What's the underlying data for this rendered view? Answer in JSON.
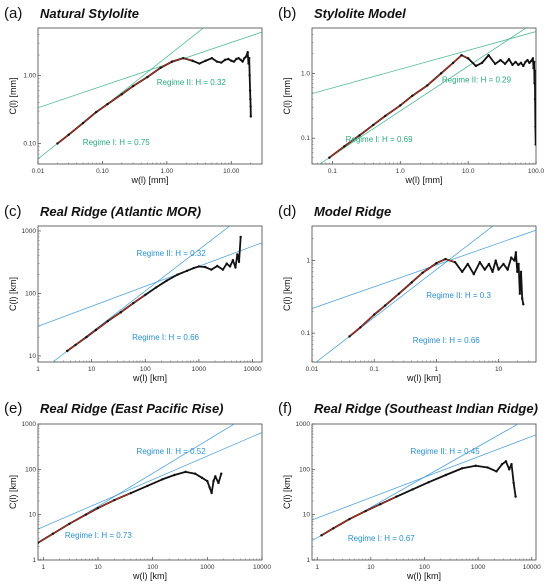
{
  "chart_data": [
    {
      "panel_label": "(a)",
      "title": "Natural Stylolite",
      "type": "line",
      "xlabel": "w(l)  [mm]",
      "ylabel": "C(l)  [mm]",
      "xlim": [
        0.01,
        30
      ],
      "ylim": [
        0.05,
        5
      ],
      "log": true,
      "xticks": [
        "0.01",
        "0.10",
        "1.00",
        "10.00"
      ],
      "yticks": [
        "0.10",
        "1.00"
      ],
      "fit_color": "#2aa87f",
      "regime1": {
        "label": "Regime I: H = 0.75",
        "H": 0.75,
        "x0": 0.02,
        "y0": 0.1
      },
      "regime2": {
        "label": "Regime II: H = 0.32",
        "H": 0.32,
        "x0": 1.9,
        "y0": 1.8
      },
      "x": [
        0.02,
        0.03,
        0.05,
        0.08,
        0.12,
        0.2,
        0.3,
        0.5,
        0.8,
        1.2,
        1.8,
        2.5,
        3.2,
        4,
        5,
        6,
        7,
        8,
        9,
        10,
        11,
        12,
        13,
        14,
        15,
        16,
        17,
        18,
        18.5,
        19,
        19.3,
        19.6,
        19.8,
        20,
        20.1
      ],
      "y": [
        0.1,
        0.135,
        0.2,
        0.29,
        0.38,
        0.53,
        0.7,
        0.95,
        1.3,
        1.6,
        1.8,
        1.65,
        1.5,
        1.65,
        1.8,
        1.6,
        1.55,
        1.7,
        1.75,
        1.65,
        1.6,
        1.75,
        1.8,
        1.7,
        1.6,
        1.8,
        1.9,
        2.2,
        1.5,
        1.8,
        1.0,
        0.6,
        0.45,
        0.35,
        0.25
      ]
    },
    {
      "panel_label": "(b)",
      "title": "Stylolite Model",
      "type": "line",
      "xlabel": "w(l)  [mm]",
      "ylabel": "C(l)  [mm]",
      "xlim": [
        0.05,
        100
      ],
      "ylim": [
        0.04,
        5
      ],
      "log": true,
      "xticks": [
        "0.1",
        "1.0",
        "10.0",
        "100.0"
      ],
      "yticks": [
        "0.1",
        "1.0"
      ],
      "fit_color": "#2aa87f",
      "regime1": {
        "label": "Regime I: H = 0.69",
        "H": 0.69,
        "x0": 0.09,
        "y0": 0.05
      },
      "regime2": {
        "label": "Regime II: H = 0.29",
        "H": 0.29,
        "x0": 6,
        "y0": 1.95
      },
      "x": [
        0.09,
        0.15,
        0.25,
        0.4,
        0.6,
        1,
        1.5,
        2.5,
        4,
        6,
        8,
        10,
        13,
        16,
        20,
        25,
        30,
        35,
        40,
        45,
        50,
        55,
        60,
        65,
        70,
        75,
        80,
        85,
        90,
        92,
        94,
        95,
        96,
        97,
        98,
        99
      ],
      "y": [
        0.05,
        0.075,
        0.11,
        0.16,
        0.22,
        0.32,
        0.45,
        0.65,
        1.0,
        1.45,
        1.9,
        1.7,
        1.3,
        1.45,
        1.9,
        1.4,
        1.6,
        1.4,
        1.65,
        1.35,
        1.5,
        1.35,
        1.45,
        1.3,
        1.5,
        1.6,
        1.45,
        1.55,
        1.7,
        1.2,
        1.5,
        0.7,
        1.1,
        0.4,
        0.15,
        0.08
      ]
    },
    {
      "panel_label": "(c)",
      "title": "Real Ridge (Atlantic MOR)",
      "type": "line",
      "xlabel": "w(l)  [km]",
      "ylabel": "C(l)  [km]",
      "xlim": [
        1,
        15000
      ],
      "ylim": [
        8,
        1200
      ],
      "log": true,
      "xticks": [
        "1",
        "10",
        "100",
        "1000",
        "10000"
      ],
      "yticks": [
        "10",
        "100",
        "1000"
      ],
      "fit_color": "#2a8fd0",
      "regime1": {
        "label": "Regime I: H = 0.66",
        "H": 0.66,
        "x0": 3.5,
        "y0": 12
      },
      "regime2": {
        "label": "Regime II: H = 0.32",
        "H": 0.32,
        "x0": 300,
        "y0": 185
      },
      "x": [
        3.5,
        5,
        8,
        12,
        20,
        35,
        60,
        100,
        160,
        250,
        400,
        600,
        800,
        1000,
        1300,
        1700,
        2200,
        2800,
        3300,
        3800,
        4300,
        4800,
        5200,
        5600,
        6000
      ],
      "y": [
        12,
        15,
        20,
        26,
        36,
        50,
        70,
        95,
        125,
        160,
        200,
        230,
        255,
        270,
        265,
        240,
        275,
        240,
        300,
        270,
        340,
        260,
        420,
        320,
        800
      ]
    },
    {
      "panel_label": "(d)",
      "title": "Model Ridge",
      "type": "line",
      "xlabel": "w(l)  [km]",
      "ylabel": "C(l)  [km]",
      "xlim": [
        0.01,
        40
      ],
      "ylim": [
        0.04,
        3
      ],
      "log": true,
      "xticks": [
        "0.01",
        "0.1",
        "1",
        "10"
      ],
      "yticks": [
        "0.1",
        "1"
      ],
      "fit_color": "#2a8fd0",
      "regime1": {
        "label": "Regime I: H = 0.66",
        "H": 0.66,
        "x0": 0.04,
        "y0": 0.09
      },
      "regime2": {
        "label": "Regime II: H = 0.3",
        "H": 0.3,
        "x0": 1.6,
        "y0": 1.0
      },
      "x": [
        0.04,
        0.06,
        0.1,
        0.15,
        0.25,
        0.4,
        0.6,
        1,
        1.4,
        2,
        2.6,
        3.2,
        4,
        5,
        6,
        7,
        8,
        9,
        10,
        12,
        14,
        16,
        18,
        19,
        20,
        21,
        22,
        23,
        24,
        25
      ],
      "y": [
        0.09,
        0.12,
        0.18,
        0.24,
        0.35,
        0.5,
        0.68,
        0.92,
        1.05,
        0.95,
        0.7,
        0.9,
        0.65,
        0.95,
        0.75,
        0.9,
        0.7,
        1.0,
        0.75,
        0.9,
        0.75,
        1.1,
        1.0,
        1.3,
        0.7,
        0.9,
        0.35,
        0.7,
        0.3,
        0.25
      ]
    },
    {
      "panel_label": "(e)",
      "title": "Real Ridge (East Pacific Rise)",
      "type": "line",
      "xlabel": "w(l)  [km]",
      "ylabel": "C(l)  [km]",
      "xlim": [
        0.8,
        10000
      ],
      "ylim": [
        1,
        1000
      ],
      "log": true,
      "xticks": [
        "1",
        "10",
        "100",
        "1000",
        "10000"
      ],
      "yticks": [
        "1",
        "10",
        "100",
        "1000"
      ],
      "fit_color": "#2a8fd0",
      "regime1": {
        "label": "Regime I: H = 0.73",
        "H": 0.73,
        "x0": 0.8,
        "y0": 2.4
      },
      "regime2": {
        "label": "Regime II: H = 0.52",
        "H": 0.52,
        "x0": 200,
        "y0": 85
      },
      "x": [
        0.8,
        1.5,
        3,
        6,
        10,
        20,
        40,
        80,
        150,
        250,
        400,
        600,
        800,
        1000,
        1100,
        1200,
        1300,
        1400,
        1600,
        1800
      ],
      "y": [
        2.4,
        3.8,
        6.3,
        10,
        14,
        21,
        30,
        43,
        60,
        75,
        88,
        80,
        65,
        55,
        40,
        30,
        55,
        70,
        50,
        80
      ]
    },
    {
      "panel_label": "(f)",
      "title": "Real Ridge (Southeast Indian Ridge)",
      "type": "line",
      "xlabel": "w(l)  [km]",
      "ylabel": "C(l)  [km]",
      "xlim": [
        0.8,
        12000
      ],
      "ylim": [
        1,
        1000
      ],
      "log": true,
      "xticks": [
        "1",
        "10",
        "100",
        "1000",
        "10000"
      ],
      "yticks": [
        "1",
        "10",
        "100",
        "1000"
      ],
      "fit_color": "#2a8fd0",
      "regime1": {
        "label": "Regime I: H = 0.67",
        "H": 0.67,
        "x0": 1.2,
        "y0": 3.5
      },
      "regime2": {
        "label": "Regime II: H = 0.45",
        "H": 0.45,
        "x0": 300,
        "y0": 110
      },
      "x": [
        1.2,
        2,
        4,
        8,
        15,
        30,
        60,
        120,
        250,
        500,
        900,
        1500,
        2200,
        2800,
        3300,
        3800,
        4200,
        4600,
        5000
      ],
      "y": [
        3.5,
        5,
        8,
        12,
        17,
        25,
        36,
        52,
        75,
        105,
        120,
        110,
        90,
        130,
        150,
        100,
        130,
        50,
        25
      ]
    }
  ]
}
